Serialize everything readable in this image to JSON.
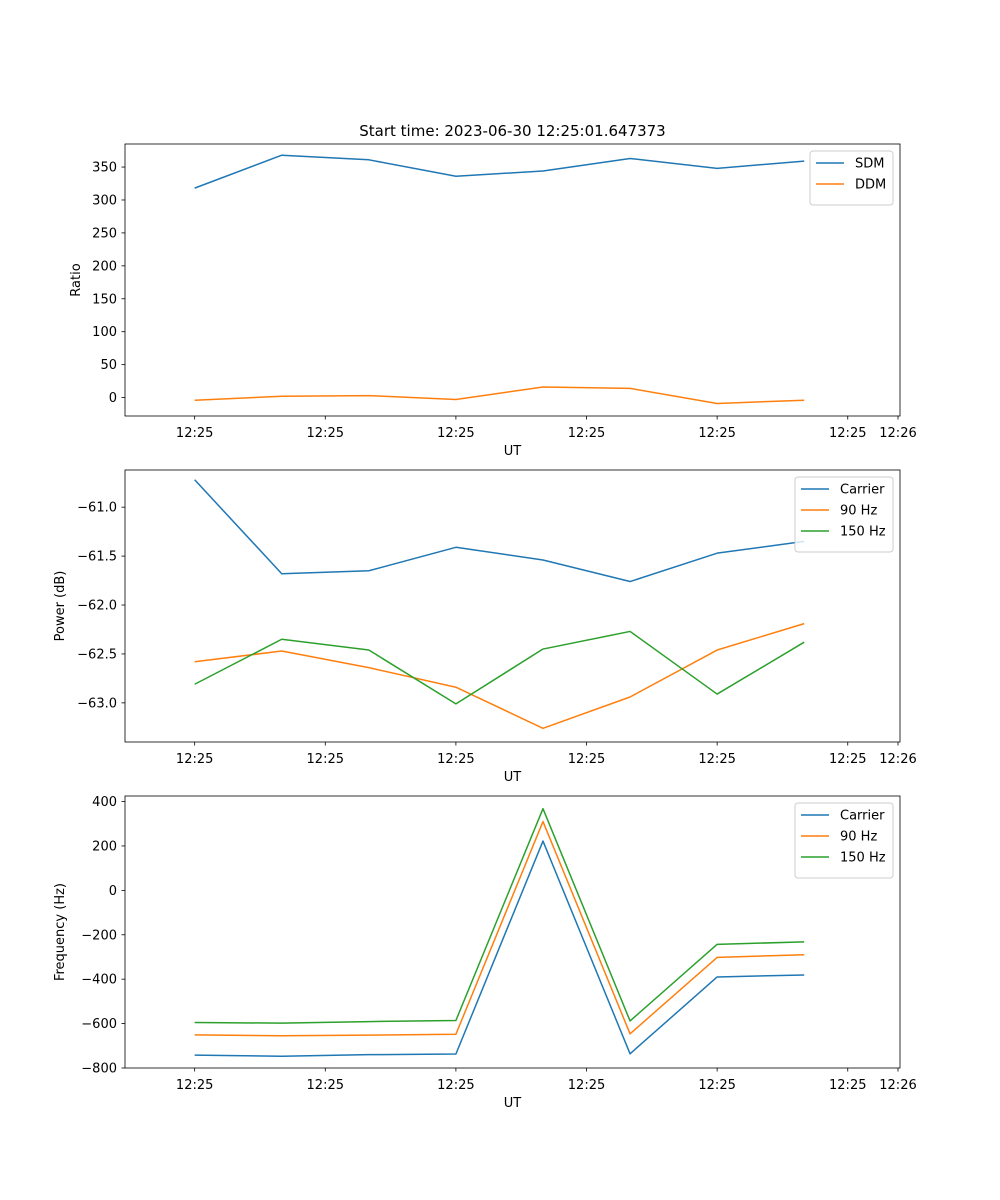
{
  "figure_title": "Start time: 2023-06-30 12:25:01.647373",
  "colors": {
    "blue": "#1f77b4",
    "orange": "#ff7f0e",
    "green": "#2ca02c"
  },
  "chart_data": [
    {
      "type": "line",
      "title": "Start time: 2023-06-30 12:25:01.647373",
      "xlabel": "UT",
      "ylabel": "Ratio",
      "x_ticks": [
        "12:25",
        "12:25",
        "12:25",
        "12:25",
        "12:25",
        "12:25",
        "12:26"
      ],
      "x": [
        1,
        2,
        3,
        4,
        5,
        6,
        7,
        8
      ],
      "xlim": [
        0.2,
        9.1
      ],
      "ylim": [
        -28,
        385
      ],
      "y_ticks": [
        0,
        50,
        100,
        150,
        200,
        250,
        300,
        350
      ],
      "legend": "top-right",
      "grid": false,
      "series": [
        {
          "name": "SDM",
          "color": "#1f77b4",
          "values": [
            318,
            368,
            361,
            336,
            344,
            363,
            348,
            359
          ]
        },
        {
          "name": "DDM",
          "color": "#ff7f0e",
          "values": [
            -4,
            2,
            3,
            -3,
            16,
            14,
            -9,
            -4
          ]
        }
      ]
    },
    {
      "type": "line",
      "xlabel": "UT",
      "ylabel": "Power (dB)",
      "x_ticks": [
        "12:25",
        "12:25",
        "12:25",
        "12:25",
        "12:25",
        "12:25",
        "12:26"
      ],
      "x": [
        1,
        2,
        3,
        4,
        5,
        6,
        7,
        8
      ],
      "xlim": [
        0.2,
        9.1
      ],
      "ylim": [
        -63.4,
        -60.62
      ],
      "y_ticks": [
        -63.0,
        -62.5,
        -62.0,
        -61.5,
        -61.0
      ],
      "y_tick_labels": [
        "−63.0",
        "−62.5",
        "−62.0",
        "−61.5",
        "−61.0"
      ],
      "legend": "top-right",
      "grid": false,
      "series": [
        {
          "name": "Carrier",
          "color": "#1f77b4",
          "values": [
            -60.72,
            -61.68,
            -61.65,
            -61.41,
            -61.54,
            -61.76,
            -61.47,
            -61.35
          ]
        },
        {
          "name": "90 Hz",
          "color": "#ff7f0e",
          "values": [
            -62.58,
            -62.47,
            -62.64,
            -62.84,
            -63.26,
            -62.94,
            -62.46,
            -62.19
          ]
        },
        {
          "name": "150 Hz",
          "color": "#2ca02c",
          "values": [
            -62.81,
            -62.35,
            -62.46,
            -63.01,
            -62.45,
            -62.27,
            -62.91,
            -62.38
          ]
        }
      ]
    },
    {
      "type": "line",
      "xlabel": "UT",
      "ylabel": "Frequency (Hz)",
      "x_ticks": [
        "12:25",
        "12:25",
        "12:25",
        "12:25",
        "12:25",
        "12:25",
        "12:26"
      ],
      "x": [
        1,
        2,
        3,
        4,
        5,
        6,
        7,
        8
      ],
      "xlim": [
        0.2,
        9.1
      ],
      "ylim": [
        -800,
        425
      ],
      "y_ticks": [
        -800,
        -600,
        -400,
        -200,
        0,
        200,
        400
      ],
      "y_tick_labels": [
        "−800",
        "−600",
        "−400",
        "−200",
        "0",
        "200",
        "400"
      ],
      "legend": "top-right",
      "grid": false,
      "series": [
        {
          "name": "Carrier",
          "color": "#1f77b4",
          "values": [
            -742,
            -747,
            -740,
            -737,
            222,
            -736,
            -390,
            -381
          ]
        },
        {
          "name": "90 Hz",
          "color": "#ff7f0e",
          "values": [
            -651,
            -655,
            -652,
            -648,
            310,
            -646,
            -302,
            -290
          ]
        },
        {
          "name": "150 Hz",
          "color": "#2ca02c",
          "values": [
            -595,
            -598,
            -591,
            -586,
            368,
            -588,
            -243,
            -232
          ]
        }
      ]
    }
  ]
}
